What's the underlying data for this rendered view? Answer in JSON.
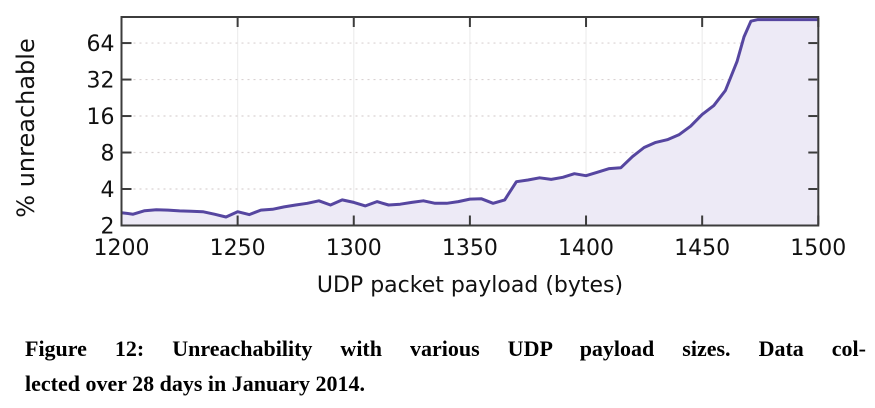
{
  "figure": {
    "caption": {
      "line1": "Figure 12: Unreachability with various UDP payload sizes. Data col-",
      "line2": "lected over 28 days in January 2014."
    }
  },
  "chart_data": {
    "type": "area",
    "title": "",
    "xlabel": "UDP packet payload (bytes)",
    "ylabel": "% unreachable",
    "y_scale": "log2",
    "xlim": [
      1200,
      1500
    ],
    "ylim": [
      2,
      105
    ],
    "x_ticks": [
      1200,
      1250,
      1300,
      1350,
      1400,
      1450,
      1500
    ],
    "y_ticks": [
      2,
      4,
      8,
      16,
      32,
      64
    ],
    "grid": true,
    "legend": "none",
    "series": [
      {
        "name": "% unreachable",
        "x": [
          1200,
          1205,
          1210,
          1215,
          1220,
          1225,
          1230,
          1235,
          1240,
          1245,
          1250,
          1255,
          1260,
          1265,
          1270,
          1275,
          1280,
          1285,
          1290,
          1295,
          1300,
          1305,
          1310,
          1315,
          1320,
          1325,
          1330,
          1335,
          1340,
          1345,
          1350,
          1355,
          1360,
          1365,
          1370,
          1375,
          1380,
          1385,
          1390,
          1395,
          1400,
          1405,
          1410,
          1415,
          1420,
          1425,
          1430,
          1435,
          1440,
          1445,
          1450,
          1455,
          1460,
          1465,
          1468,
          1471,
          1474,
          1480,
          1485,
          1490,
          1495,
          1500
        ],
        "y": [
          2.55,
          2.48,
          2.65,
          2.7,
          2.68,
          2.64,
          2.62,
          2.6,
          2.48,
          2.35,
          2.6,
          2.46,
          2.68,
          2.72,
          2.85,
          2.95,
          3.05,
          3.2,
          2.95,
          3.25,
          3.1,
          2.9,
          3.15,
          2.95,
          3.0,
          3.1,
          3.2,
          3.05,
          3.05,
          3.15,
          3.3,
          3.32,
          3.05,
          3.25,
          4.6,
          4.75,
          4.95,
          4.8,
          5.0,
          5.35,
          5.15,
          5.5,
          5.9,
          6.0,
          7.4,
          8.8,
          9.7,
          10.2,
          11.2,
          13.2,
          16.5,
          19.5,
          26.0,
          45.0,
          72.0,
          97.0,
          100.0,
          100.0,
          100.0,
          100.0,
          100.0,
          100.0
        ]
      }
    ],
    "colors": {
      "line": "#5646a0",
      "fill": "#edeaf6",
      "border": "#3c3c3c",
      "grid_horizontal": "#d9d2d2",
      "grid_vertical": "#ededed",
      "text": "#111111"
    }
  }
}
